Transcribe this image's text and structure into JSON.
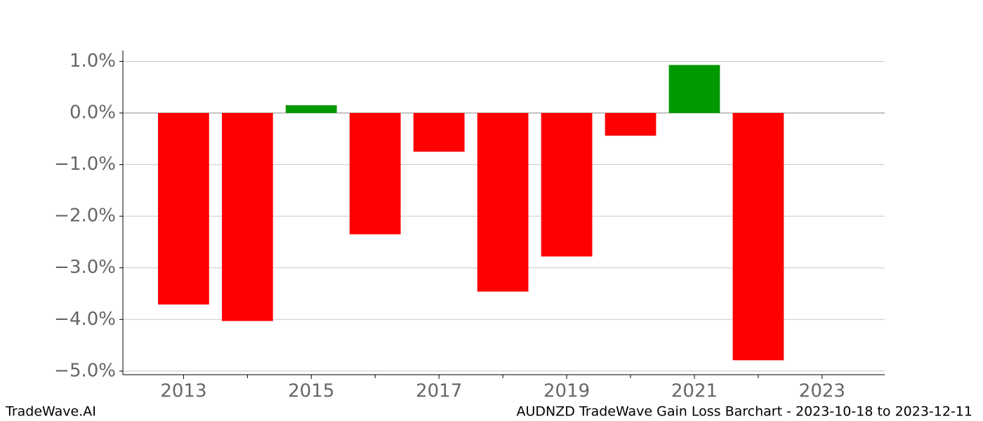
{
  "chart_data": {
    "type": "bar",
    "title": "AUDNZD TradeWave Gain Loss Barchart - 2023-10-18 to 2023-12-11",
    "source": "TradeWave.AI",
    "x": [
      2013,
      2014,
      2015,
      2016,
      2017,
      2018,
      2019,
      2020,
      2021,
      2022
    ],
    "values": [
      -3.71,
      -4.03,
      0.15,
      -2.35,
      -0.75,
      -3.46,
      -2.78,
      -0.44,
      0.93,
      -4.79
    ],
    "colors": [
      "#ff0000",
      "#ff0000",
      "#009900",
      "#ff0000",
      "#ff0000",
      "#ff0000",
      "#ff0000",
      "#ff0000",
      "#009900",
      "#ff0000"
    ],
    "xlim": [
      2012.05,
      2023.98
    ],
    "xticks": [
      2013,
      2015,
      2017,
      2019,
      2021,
      2023
    ],
    "xminorticks": [
      2014,
      2016,
      2018,
      2020,
      2022
    ],
    "ylim": [
      -5.07,
      1.21
    ],
    "yticks": [
      {
        "value": 1,
        "label": "1.0%"
      },
      {
        "value": 0,
        "label": "0.0%"
      },
      {
        "value": -1,
        "label": "−1.0%"
      },
      {
        "value": -2,
        "label": "−2.0%"
      },
      {
        "value": -3,
        "label": "−3.0%"
      },
      {
        "value": -4,
        "label": "−4.0%"
      },
      {
        "value": -5,
        "label": "−5.0%"
      }
    ],
    "grid": true
  }
}
